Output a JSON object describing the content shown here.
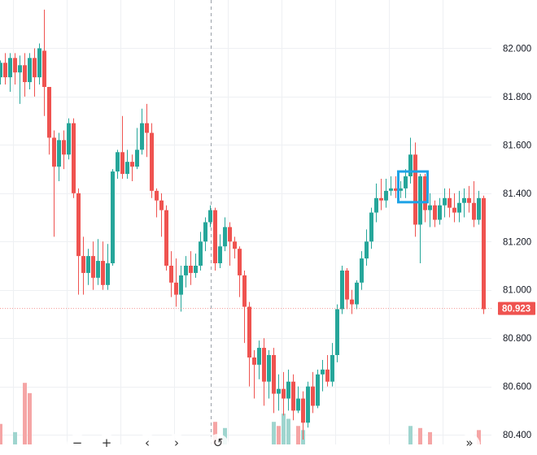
{
  "chart_data": {
    "type": "candlestick",
    "colors": {
      "up": "#26a69a",
      "down": "#ef5350",
      "volume_up": "#9fd5cf",
      "volume_down": "#f5a5a5",
      "highlight": "#1ea3e6",
      "grid": "#eef0f3",
      "crosshair": "#9aa0a8"
    },
    "ylim": [
      80.36,
      82.2
    ],
    "y_ticks": [
      "80.400",
      "80.600",
      "80.800",
      "81.000",
      "81.200",
      "81.400",
      "81.600",
      "81.800",
      "82.000"
    ],
    "last_price": "80.923",
    "last_price_value": 80.923,
    "candles": [
      [
        81.88,
        81.94,
        81.85,
        81.95
      ],
      [
        81.94,
        81.88,
        81.85,
        81.98
      ],
      [
        81.88,
        81.96,
        81.82,
        81.98
      ],
      [
        81.96,
        81.9,
        81.85,
        81.98
      ],
      [
        81.9,
        81.93,
        81.77,
        81.97
      ],
      [
        81.93,
        81.86,
        81.8,
        81.98
      ],
      [
        81.86,
        81.96,
        81.83,
        81.98
      ],
      [
        81.96,
        81.88,
        81.8,
        82.0
      ],
      [
        81.88,
        82.0,
        81.85,
        82.02
      ],
      [
        81.99,
        81.84,
        81.72,
        82.16
      ],
      [
        81.84,
        81.63,
        81.56,
        81.84
      ],
      [
        81.63,
        81.51,
        81.22,
        81.66
      ],
      [
        81.51,
        81.62,
        81.45,
        81.65
      ],
      [
        81.62,
        81.56,
        81.5,
        81.66
      ],
      [
        81.56,
        81.69,
        81.54,
        81.71
      ],
      [
        81.69,
        81.4,
        81.38,
        81.71
      ],
      [
        81.4,
        81.14,
        80.98,
        81.42
      ],
      [
        81.14,
        81.07,
        80.98,
        81.22
      ],
      [
        81.07,
        81.14,
        81.02,
        81.17
      ],
      [
        81.14,
        81.05,
        81.0,
        81.2
      ],
      [
        81.05,
        81.12,
        81.02,
        81.21
      ],
      [
        81.12,
        81.02,
        81.0,
        81.2
      ],
      [
        81.02,
        81.11,
        81.0,
        81.19
      ],
      [
        81.11,
        81.49,
        81.1,
        81.5
      ],
      [
        81.49,
        81.57,
        81.46,
        81.58
      ],
      [
        81.57,
        81.48,
        81.46,
        81.72
      ],
      [
        81.48,
        81.53,
        81.46,
        81.58
      ],
      [
        81.53,
        81.51,
        81.45,
        81.56
      ],
      [
        81.51,
        81.58,
        81.5,
        81.67
      ],
      [
        81.58,
        81.69,
        81.56,
        81.75
      ],
      [
        81.69,
        81.65,
        81.55,
        81.77
      ],
      [
        81.65,
        81.41,
        81.38,
        81.69
      ],
      [
        81.41,
        81.37,
        81.3,
        81.42
      ],
      [
        81.37,
        81.33,
        81.22,
        81.4
      ],
      [
        81.33,
        81.1,
        81.08,
        81.35
      ],
      [
        81.1,
        81.03,
        80.97,
        81.16
      ],
      [
        81.03,
        80.98,
        80.93,
        81.13
      ],
      [
        80.98,
        81.06,
        80.91,
        81.1
      ],
      [
        81.06,
        81.1,
        81.01,
        81.14
      ],
      [
        81.1,
        81.07,
        81.02,
        81.16
      ],
      [
        81.07,
        81.1,
        81.05,
        81.15
      ],
      [
        81.1,
        81.2,
        81.08,
        81.24
      ],
      [
        81.2,
        81.28,
        81.16,
        81.3
      ],
      [
        81.28,
        81.33,
        81.26,
        81.35
      ],
      [
        81.33,
        81.11,
        81.08,
        81.34
      ],
      [
        81.11,
        81.18,
        81.09,
        81.23
      ],
      [
        81.18,
        81.26,
        81.16,
        81.3
      ],
      [
        81.26,
        81.2,
        81.1,
        81.28
      ],
      [
        81.2,
        81.17,
        81.13,
        81.22
      ],
      [
        81.17,
        81.06,
        80.97,
        81.18
      ],
      [
        81.06,
        80.93,
        80.78,
        81.08
      ],
      [
        80.93,
        80.72,
        80.6,
        80.95
      ],
      [
        80.72,
        80.69,
        80.55,
        80.75
      ],
      [
        80.69,
        80.76,
        80.63,
        80.79
      ],
      [
        80.76,
        80.62,
        80.52,
        80.8
      ],
      [
        80.62,
        80.73,
        80.55,
        80.75
      ],
      [
        80.73,
        80.57,
        80.49,
        80.76
      ],
      [
        80.57,
        80.59,
        80.5,
        80.65
      ],
      [
        80.59,
        80.55,
        80.48,
        80.66
      ],
      [
        80.55,
        80.62,
        80.5,
        80.67
      ],
      [
        80.62,
        80.5,
        80.46,
        80.65
      ],
      [
        80.5,
        80.55,
        80.49,
        80.6
      ],
      [
        80.55,
        80.45,
        80.38,
        80.58
      ],
      [
        80.45,
        80.6,
        80.43,
        80.62
      ],
      [
        80.6,
        80.52,
        80.49,
        80.66
      ],
      [
        80.52,
        80.65,
        80.51,
        80.67
      ],
      [
        80.65,
        80.67,
        80.58,
        80.71
      ],
      [
        80.67,
        80.62,
        80.6,
        80.73
      ],
      [
        80.62,
        80.73,
        80.6,
        80.78
      ],
      [
        80.73,
        80.92,
        80.7,
        80.94
      ],
      [
        80.92,
        81.08,
        80.9,
        81.1
      ],
      [
        81.08,
        80.96,
        80.92,
        81.09
      ],
      [
        80.96,
        80.94,
        80.9,
        81.0
      ],
      [
        80.94,
        81.03,
        80.92,
        81.04
      ],
      [
        81.03,
        81.13,
        81.0,
        81.16
      ],
      [
        81.13,
        81.2,
        81.1,
        81.25
      ],
      [
        81.2,
        81.32,
        81.17,
        81.34
      ],
      [
        81.32,
        81.38,
        81.28,
        81.44
      ],
      [
        81.38,
        81.37,
        81.33,
        81.46
      ],
      [
        81.37,
        81.41,
        81.34,
        81.46
      ],
      [
        81.41,
        81.42,
        81.39,
        81.47
      ],
      [
        81.42,
        81.41,
        81.38,
        81.47
      ],
      [
        81.41,
        81.42,
        81.38,
        81.45
      ],
      [
        81.42,
        81.47,
        81.38,
        81.5
      ],
      [
        81.47,
        81.56,
        81.44,
        81.63
      ],
      [
        81.56,
        81.27,
        81.22,
        81.61
      ],
      [
        81.27,
        81.47,
        81.11,
        81.48
      ],
      [
        81.47,
        81.33,
        81.28,
        81.48
      ],
      [
        81.33,
        81.35,
        81.26,
        81.4
      ],
      [
        81.35,
        81.29,
        81.26,
        81.37
      ],
      [
        81.29,
        81.35,
        81.27,
        81.38
      ],
      [
        81.35,
        81.38,
        81.3,
        81.42
      ],
      [
        81.38,
        81.34,
        81.3,
        81.42
      ],
      [
        81.34,
        81.32,
        81.28,
        81.4
      ],
      [
        81.32,
        81.36,
        81.28,
        81.41
      ],
      [
        81.36,
        81.38,
        81.3,
        81.42
      ],
      [
        81.38,
        81.36,
        81.32,
        81.43
      ],
      [
        81.36,
        81.29,
        81.26,
        81.45
      ],
      [
        81.29,
        81.38,
        81.27,
        81.41
      ],
      [
        81.38,
        80.92,
        80.9,
        81.39
      ]
    ],
    "volume_bars": [
      {
        "index": 0,
        "volume": 0.2,
        "up": false
      },
      {
        "index": 3,
        "volume": 0.12,
        "up": true
      },
      {
        "index": 5,
        "volume": 0.6,
        "up": false
      },
      {
        "index": 6,
        "volume": 0.5,
        "up": false
      },
      {
        "index": 44,
        "volume": 0.22,
        "up": false
      },
      {
        "index": 46,
        "volume": 0.16,
        "up": true
      },
      {
        "index": 56,
        "volume": 0.22,
        "up": true
      },
      {
        "index": 57,
        "volume": 0.18,
        "up": false
      },
      {
        "index": 58,
        "volume": 0.3,
        "up": true
      },
      {
        "index": 59,
        "volume": 0.25,
        "up": true
      },
      {
        "index": 61,
        "volume": 0.18,
        "up": false
      },
      {
        "index": 62,
        "volume": 0.14,
        "up": true
      },
      {
        "index": 84,
        "volume": 0.18,
        "up": true
      },
      {
        "index": 86,
        "volume": 0.16,
        "up": false
      },
      {
        "index": 88,
        "volume": 0.12,
        "up": false
      },
      {
        "index": 98,
        "volume": 0.14,
        "up": false
      }
    ],
    "volume_max": 0.95,
    "crosshair_index": 43,
    "highlight_box": {
      "from_index": 82,
      "to_index": 87,
      "low": 81.363,
      "high": 81.49
    }
  },
  "toolbar": {
    "zoom_out_icon": "minus-icon",
    "zoom_in_icon": "plus-icon",
    "scroll_left_icon": "chevron-left-icon",
    "scroll_right_icon": "chevron-right-icon",
    "reset_icon": "reset-icon",
    "scroll_to_end_icon": "double-chevron-right-icon"
  }
}
